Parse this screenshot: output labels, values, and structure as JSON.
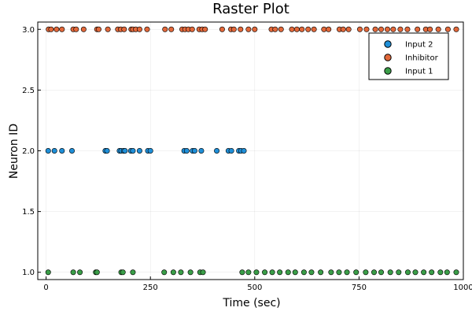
{
  "chart_data": {
    "type": "scatter",
    "title": "Raster Plot",
    "xlabel": "Time (sec)",
    "ylabel": "Neuron ID",
    "xlim": [
      -20,
      1000
    ],
    "ylim": [
      0.94,
      3.06
    ],
    "xticks": [
      0,
      250,
      500,
      750,
      1000
    ],
    "yticks": [
      1.0,
      1.5,
      2.0,
      2.5,
      3.0
    ],
    "xtick_labels": [
      "0",
      "250",
      "500",
      "750",
      "1000"
    ],
    "ytick_labels": [
      "1.0",
      "1.5",
      "2.0",
      "2.5",
      "3.0"
    ],
    "grid": true,
    "legend_position": "top-right",
    "series": [
      {
        "name": "Input 2",
        "color": "#1f8fd8",
        "x": [
          5,
          20,
          38,
          62,
          142,
          146,
          176,
          180,
          186,
          189,
          203,
          208,
          224,
          244,
          250,
          331,
          337,
          351,
          356,
          372,
          409,
          437,
          444,
          462,
          467,
          474
        ],
        "y": [
          2,
          2,
          2,
          2,
          2,
          2,
          2,
          2,
          2,
          2,
          2,
          2,
          2,
          2,
          2,
          2,
          2,
          2,
          2,
          2,
          2,
          2,
          2,
          2,
          2,
          2
        ]
      },
      {
        "name": "Inhibitor",
        "color": "#e2683a",
        "x": [
          6,
          12,
          25,
          38,
          65,
          72,
          90,
          122,
          126,
          148,
          172,
          179,
          187,
          204,
          208,
          215,
          224,
          242,
          285,
          300,
          326,
          333,
          341,
          350,
          367,
          374,
          381,
          422,
          443,
          450,
          466,
          485,
          500,
          540,
          549,
          563,
          589,
          601,
          613,
          628,
          642,
          666,
          677,
          703,
          712,
          725,
          752,
          768,
          789,
          803,
          818,
          832,
          849,
          866,
          890,
          910,
          920,
          940,
          963,
          983
        ],
        "y": [
          3,
          3,
          3,
          3,
          3,
          3,
          3,
          3,
          3,
          3,
          3,
          3,
          3,
          3,
          3,
          3,
          3,
          3,
          3,
          3,
          3,
          3,
          3,
          3,
          3,
          3,
          3,
          3,
          3,
          3,
          3,
          3,
          3,
          3,
          3,
          3,
          3,
          3,
          3,
          3,
          3,
          3,
          3,
          3,
          3,
          3,
          3,
          3,
          3,
          3,
          3,
          3,
          3,
          3,
          3,
          3,
          3,
          3,
          3,
          3
        ]
      },
      {
        "name": "Input 1",
        "color": "#3a9e48",
        "x": [
          5,
          65,
          81,
          119,
          122,
          180,
          184,
          208,
          283,
          305,
          323,
          346,
          369,
          376,
          470,
          485,
          504,
          524,
          542,
          560,
          580,
          597,
          618,
          636,
          658,
          683,
          702,
          721,
          743,
          766,
          786,
          803,
          825,
          845,
          867,
          885,
          905,
          924,
          945,
          961,
          983
        ],
        "y": [
          1,
          1,
          1,
          1,
          1,
          1,
          1,
          1,
          1,
          1,
          1,
          1,
          1,
          1,
          1,
          1,
          1,
          1,
          1,
          1,
          1,
          1,
          1,
          1,
          1,
          1,
          1,
          1,
          1,
          1,
          1,
          1,
          1,
          1,
          1,
          1,
          1,
          1,
          1,
          1,
          1
        ]
      }
    ],
    "legend_order": [
      0,
      1,
      2
    ]
  }
}
